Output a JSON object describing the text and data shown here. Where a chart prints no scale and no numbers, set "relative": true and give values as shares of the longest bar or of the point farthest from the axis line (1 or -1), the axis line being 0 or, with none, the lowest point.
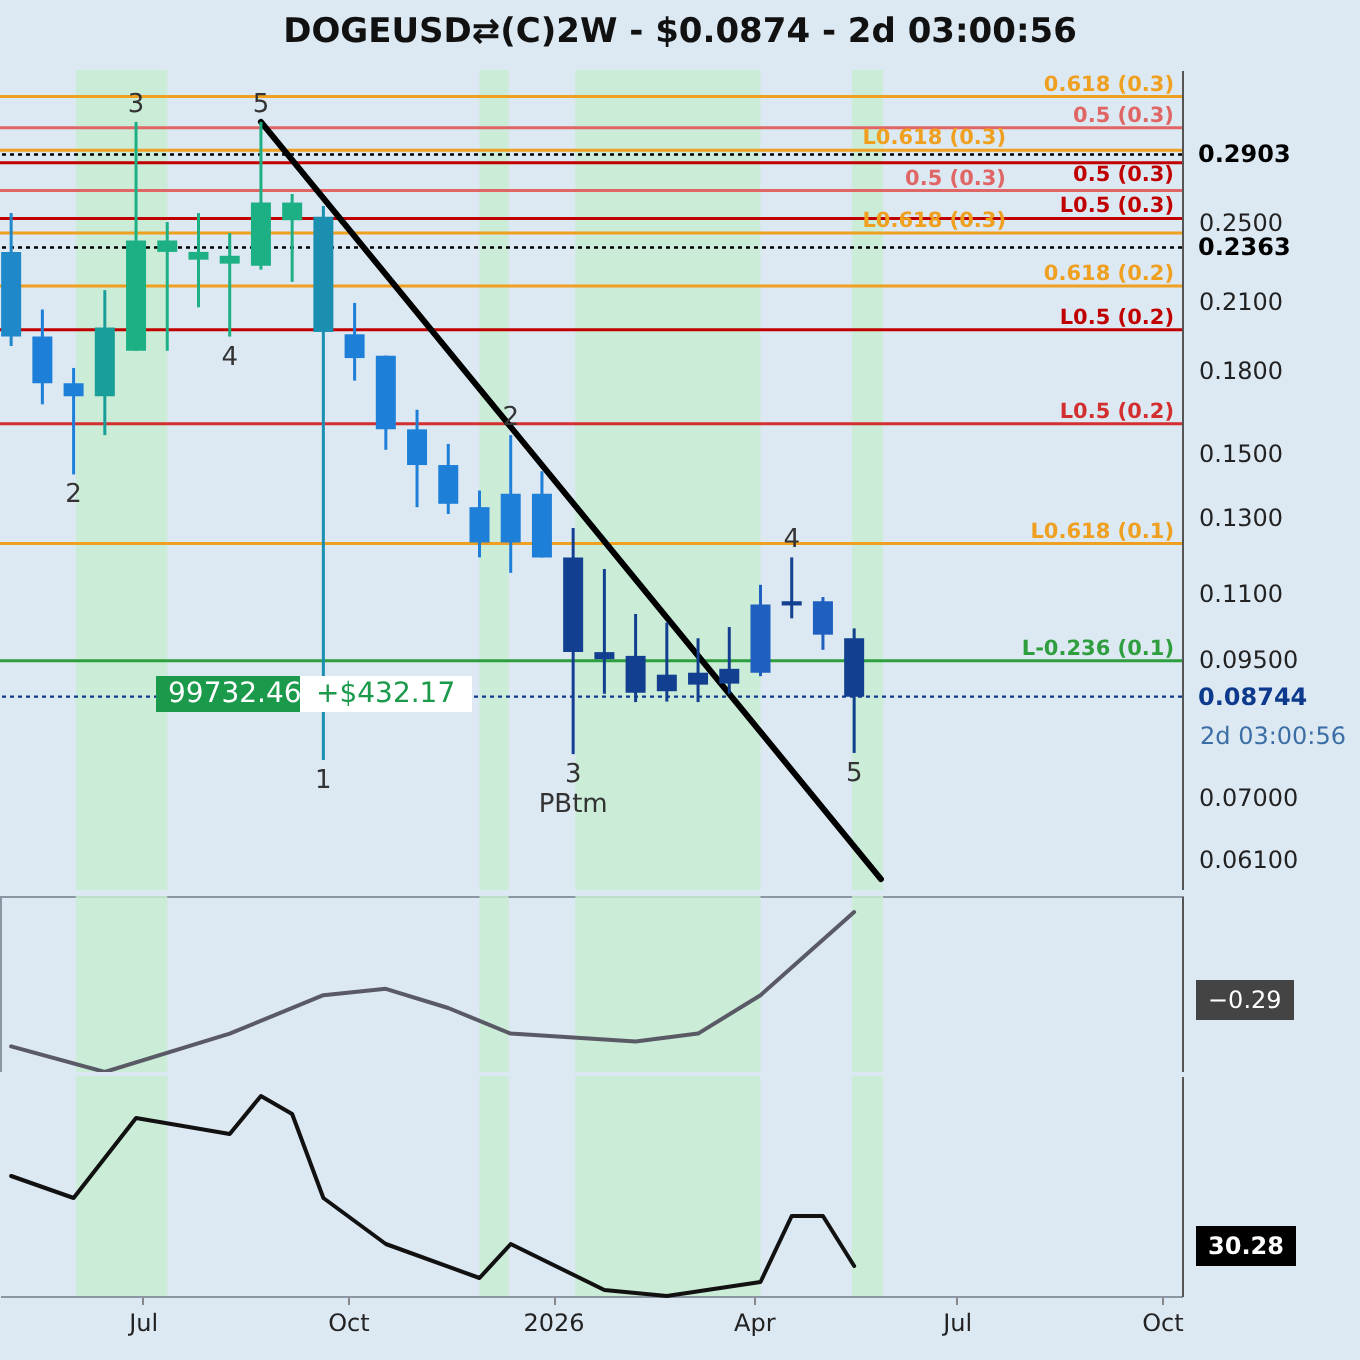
{
  "chart_data": [
    {
      "type": "candlestick",
      "title": "DOGEUSD⇄(C)2W - $0.0874 - 2d 03:00:56",
      "x": [
        "2025-05-03",
        "2025-05-17",
        "2025-05-31",
        "2025-06-14",
        "2025-06-28",
        "2025-07-12",
        "2025-07-26",
        "2025-08-09",
        "2025-08-23",
        "2025-09-06",
        "2025-09-20",
        "2025-10-04",
        "2025-10-18",
        "2025-11-01",
        "2025-11-15",
        "2025-11-29",
        "2025-12-13",
        "2025-12-27",
        "2026-01-10",
        "2026-01-24",
        "2026-02-07",
        "2026-02-21",
        "2026-03-07",
        "2026-03-21",
        "2026-04-04",
        "2026-04-18",
        "2026-05-02",
        "2026-05-16"
      ],
      "ohlc": [
        [
          0.234,
          0.255,
          0.19,
          0.194
        ],
        [
          0.194,
          0.206,
          0.167,
          0.175
        ],
        [
          0.175,
          0.181,
          0.143,
          0.17
        ],
        [
          0.17,
          0.215,
          0.156,
          0.198
        ],
        [
          0.188,
          0.312,
          0.188,
          0.24
        ],
        [
          0.234,
          0.25,
          0.188,
          0.24
        ],
        [
          0.23,
          0.255,
          0.207,
          0.234
        ],
        [
          0.228,
          0.244,
          0.194,
          0.232
        ],
        [
          0.227,
          0.312,
          0.225,
          0.261
        ],
        [
          0.251,
          0.266,
          0.219,
          0.261
        ],
        [
          0.253,
          0.259,
          0.076,
          0.196
        ],
        [
          0.195,
          0.209,
          0.176,
          0.185
        ],
        [
          0.186,
          0.186,
          0.151,
          0.158
        ],
        [
          0.158,
          0.165,
          0.133,
          0.146
        ],
        [
          0.146,
          0.153,
          0.131,
          0.134
        ],
        [
          0.133,
          0.138,
          0.119,
          0.123
        ],
        [
          0.137,
          0.156,
          0.115,
          0.123
        ],
        [
          0.137,
          0.144,
          0.119,
          0.119
        ],
        [
          0.119,
          0.127,
          0.077,
          0.0965
        ],
        [
          0.0965,
          0.116,
          0.088,
          0.095
        ],
        [
          0.0957,
          0.105,
          0.0864,
          0.0882
        ],
        [
          0.0885,
          0.103,
          0.0865,
          0.0918
        ],
        [
          0.0922,
          0.0995,
          0.0864,
          0.0898
        ],
        [
          0.09,
          0.102,
          0.088,
          0.093
        ],
        [
          0.1072,
          0.112,
          0.0915,
          0.0922
        ],
        [
          0.107,
          0.119,
          0.104,
          0.108
        ],
        [
          0.108,
          0.109,
          0.097,
          0.1003
        ],
        [
          0.0995,
          0.1017,
          0.0772,
          0.0874
        ]
      ],
      "colors": [
        "#1e88c8",
        "#1e7fd8",
        "#1e7fd8",
        "#1a9e9a",
        "#1db084",
        "#1db084",
        "#1db084",
        "#1db084",
        "#1db084",
        "#1db084",
        "#1b8fb0",
        "#1e7fd8",
        "#1e7fd8",
        "#1e7fd8",
        "#1e7fd8",
        "#1e7fd8",
        "#1e7fd8",
        "#1e7fd8",
        "#123f8f",
        "#123f8f",
        "#123f8f",
        "#123f8f",
        "#123f8f",
        "#123f8f",
        "#1e5fc0",
        "#123f8f",
        "#1e5fc0",
        "#123f8f"
      ],
      "series": [
        {
          "type": "line",
          "color": "#000000",
          "x": [
            "2025-08-23",
            "2026-05-28"
          ],
          "values": [
            0.312,
            0.0584
          ]
        }
      ],
      "xlim": [
        "2025-04-28",
        "2026-10-10"
      ],
      "ylim": [
        0.057,
        0.35
      ],
      "yticks": [
        {
          "value": 0.25,
          "label": "0.2500"
        },
        {
          "value": 0.21,
          "label": "0.2100"
        },
        {
          "value": 0.18,
          "label": "0.1800"
        },
        {
          "value": 0.15,
          "label": "0.1500"
        },
        {
          "value": 0.13,
          "label": "0.1300"
        },
        {
          "value": 0.11,
          "label": "0.1100"
        },
        {
          "value": 0.095,
          "label": "0.09500"
        },
        {
          "value": 0.07,
          "label": "0.07000"
        },
        {
          "value": 0.061,
          "label": "0.06100"
        }
      ],
      "log": "y",
      "tick_labels": "y",
      "bands": [
        {
          "axis": "x",
          "from": "2025-06-01",
          "to": "2025-07-12",
          "color": "#c8ecd2"
        },
        {
          "axis": "x",
          "from": "2025-11-29",
          "to": "2025-12-12",
          "color": "#c8ecd2"
        },
        {
          "axis": "x",
          "from": "2026-01-11",
          "to": "2026-04-04",
          "color": "#c8ecd2"
        },
        {
          "axis": "x",
          "from": "2026-05-15",
          "to": "2026-05-29",
          "color": "#c8ecd2"
        }
      ],
      "ref_lines": [
        {
          "axis": "y",
          "value": 0.33,
          "label": "0.618 (0.3)",
          "color": "#f0a020"
        },
        {
          "axis": "y",
          "value": 0.308,
          "label": "0.5 (0.3)",
          "color": "#e06666"
        },
        {
          "axis": "y",
          "value": 0.293,
          "label": "L0.618 (0.3)",
          "color": "#f0a020"
        },
        {
          "axis": "y",
          "value": 0.285,
          "label": "0.5 (0.3)",
          "color": "#c00000"
        },
        {
          "axis": "y",
          "value": 0.268,
          "label": "0.5 (0.3)",
          "color": "#e06666"
        },
        {
          "axis": "y",
          "value": 0.252,
          "label": "L0.5 (0.3)",
          "color": "#c00000"
        },
        {
          "axis": "y",
          "value": 0.244,
          "label": "L0.618 (0.3)",
          "color": "#f0a020"
        },
        {
          "axis": "y",
          "value": 0.217,
          "label": "0.618 (0.2)",
          "color": "#f0a020"
        },
        {
          "axis": "y",
          "value": 0.197,
          "label": "L0.5 (0.2)",
          "color": "#c00000"
        },
        {
          "axis": "y",
          "value": 0.16,
          "label": "L0.5 (0.2)",
          "color": "#d32f2f"
        },
        {
          "axis": "y",
          "value": 0.1227,
          "label": "L0.618 (0.1)",
          "color": "#f0a020"
        },
        {
          "axis": "y",
          "value": 0.0947,
          "label": "L-0.236 (0.1)",
          "color": "#2e9e3e"
        },
        {
          "axis": "y",
          "value": 0.2903,
          "label": "0.2903",
          "color": "#000000",
          "line_style": "dotted"
        },
        {
          "axis": "y",
          "value": 0.2363,
          "label": "0.2363",
          "color": "#000000",
          "line_style": "dotted"
        },
        {
          "axis": "y",
          "value": 0.08744,
          "label": "0.08744",
          "color": "#0d3a8c",
          "line_style": "dotted"
        }
      ],
      "annotations": [
        "99732.46",
        "+$432.17",
        "2d 03:00:56",
        {
          "text": "5",
          "x": "2025-08-23",
          "y": 0.312
        },
        {
          "text": "3",
          "x": "2025-06-28",
          "y": 0.312
        },
        {
          "text": "2",
          "x": "2025-05-31",
          "y": 0.143
        },
        {
          "text": "4",
          "x": "2025-08-09",
          "y": 0.194
        },
        {
          "text": "1",
          "x": "2025-09-20",
          "y": 0.076
        },
        {
          "text": "2",
          "x": "2025-12-13",
          "y": 0.156
        },
        {
          "text": "3",
          "x": "2026-01-10",
          "y": 0.077
        },
        {
          "text": "PBtm",
          "x": "2026-01-10",
          "y": 0.077
        },
        {
          "text": "4",
          "x": "2026-04-18",
          "y": 0.119
        },
        {
          "text": "5",
          "x": "2026-05-16",
          "y": 0.0772
        }
      ]
    },
    {
      "type": "line",
      "relative": true,
      "x": [
        "2025-05-03",
        "2025-06-14",
        "2025-08-09",
        "2025-09-20",
        "2025-10-18",
        "2025-11-15",
        "2025-12-13",
        "2026-02-07",
        "2026-03-07",
        "2026-04-04",
        "2026-05-16"
      ],
      "series": [
        {
          "color": "#5a5a66",
          "values": [
            0.16,
            0,
            0.24,
            0.48,
            0.52,
            0.4,
            0.24,
            0.19,
            0.24,
            0.48,
            1
          ]
        }
      ],
      "annotations": [
        "−0.29"
      ],
      "xlim": [
        "2025-04-28",
        "2026-10-10"
      ],
      "tick_labels": false,
      "bands": [
        {
          "axis": "x",
          "from": "2025-06-01",
          "to": "2025-07-12",
          "color": "#c8ecd2"
        },
        {
          "axis": "x",
          "from": "2025-11-29",
          "to": "2025-12-12",
          "color": "#c8ecd2"
        },
        {
          "axis": "x",
          "from": "2026-01-11",
          "to": "2026-04-04",
          "color": "#c8ecd2"
        },
        {
          "axis": "x",
          "from": "2026-05-15",
          "to": "2026-05-29",
          "color": "#c8ecd2"
        }
      ]
    },
    {
      "type": "line",
      "relative": true,
      "x": [
        "2025-05-03",
        "2025-05-31",
        "2025-06-28",
        "2025-08-09",
        "2025-08-23",
        "2025-09-06",
        "2025-09-20",
        "2025-10-18",
        "2025-11-29",
        "2025-12-13",
        "2026-01-24",
        "2026-02-21",
        "2026-04-04",
        "2026-04-18",
        "2026-05-02",
        "2026-05-16"
      ],
      "series": [
        {
          "color": "#111111",
          "values": [
            0.6,
            0.49,
            0.89,
            0.81,
            1,
            0.91,
            0.49,
            0.26,
            0.09,
            0.26,
            0.03,
            0,
            0.07,
            0.4,
            0.4,
            0.15
          ]
        }
      ],
      "annotations": [
        "30.28"
      ],
      "xlim": [
        "2025-04-28",
        "2026-10-10"
      ],
      "xticks": [
        {
          "value": "2025-07-01",
          "label": "Jul"
        },
        {
          "value": "2025-10-01",
          "label": "Oct"
        },
        {
          "value": "2026-01-01",
          "label": "2026"
        },
        {
          "value": "2026-04-01",
          "label": "Apr"
        },
        {
          "value": "2026-07-01",
          "label": "Jul"
        },
        {
          "value": "2026-10-01",
          "label": "Oct"
        }
      ],
      "tick_labels": "x",
      "bands": [
        {
          "axis": "x",
          "from": "2025-06-01",
          "to": "2025-07-12",
          "color": "#c8ecd2"
        },
        {
          "axis": "x",
          "from": "2025-11-29",
          "to": "2025-12-12",
          "color": "#c8ecd2"
        },
        {
          "axis": "x",
          "from": "2026-01-11",
          "to": "2026-04-04",
          "color": "#c8ecd2"
        },
        {
          "axis": "x",
          "from": "2026-05-15",
          "to": "2026-05-29",
          "color": "#c8ecd2"
        }
      ]
    }
  ]
}
